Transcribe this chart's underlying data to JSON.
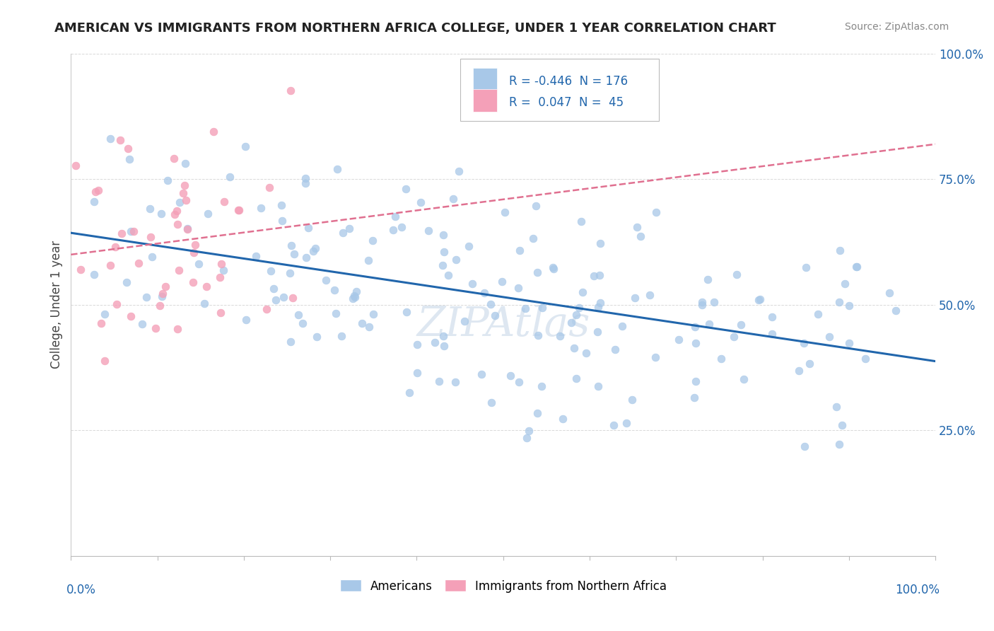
{
  "title": "AMERICAN VS IMMIGRANTS FROM NORTHERN AFRICA COLLEGE, UNDER 1 YEAR CORRELATION CHART",
  "source": "Source: ZipAtlas.com",
  "ylabel": "College, Under 1 year",
  "americans_color": "#a8c8e8",
  "immigrants_color": "#f4a0b8",
  "trendline_american_color": "#2166ac",
  "trendline_immigrant_color": "#e07090",
  "watermark": "ZIPAtlas",
  "watermark_color": "#c8d8e8",
  "background_color": "#ffffff",
  "grid_color": "#d0d0d0",
  "american_R": -0.446,
  "immigrant_R": 0.047,
  "N_am": 176,
  "N_im": 45,
  "xlim": [
    0.0,
    1.0
  ],
  "ylim": [
    0.0,
    1.0
  ],
  "ytick_labels": [
    "",
    "25.0%",
    "50.0%",
    "75.0%",
    "100.0%"
  ],
  "ytick_positions": [
    0.0,
    0.25,
    0.5,
    0.75,
    1.0
  ],
  "legend_R_am": "R = -0.446",
  "legend_N_am": "N = 176",
  "legend_R_im": "R =  0.047",
  "legend_N_im": "N =  45",
  "legend_text_color": "#2166ac",
  "title_fontsize": 13,
  "axis_label_color": "#2166ac",
  "axis_label_fontsize": 12,
  "ylabel_fontsize": 12,
  "ylabel_color": "#444444"
}
